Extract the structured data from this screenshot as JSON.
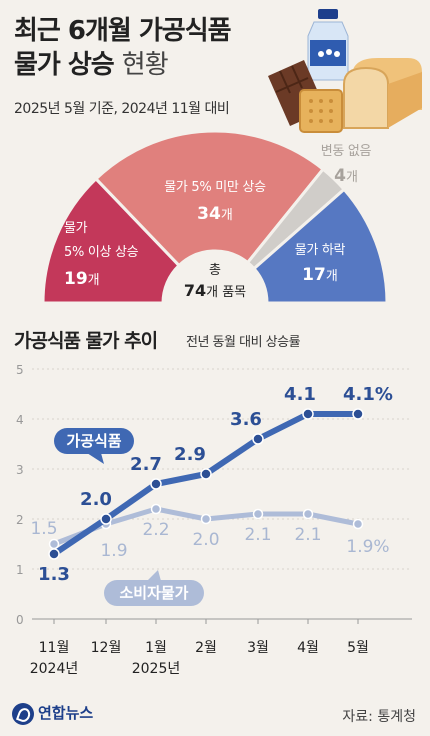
{
  "header": {
    "title_line1": "최근 6개월 가공식품",
    "title_line2_bold": "물가 상승",
    "title_line2_sub": "현황",
    "subtitle": "2025년 5월 기준, 2024년 11월 대비"
  },
  "gauge": {
    "center_label_line1": "총",
    "center_count": "74",
    "center_label_line2": "개 품목",
    "segments": [
      {
        "label_lines": [
          "물가",
          "5% 이상 상승"
        ],
        "count": "19",
        "unit": "개",
        "value": 19,
        "color": "#c3385a"
      },
      {
        "label_lines": [
          "물가 5% 미만 상승"
        ],
        "count": "34",
        "unit": "개",
        "value": 34,
        "color": "#e0807d"
      },
      {
        "label_lines": [
          "변동 없음"
        ],
        "count": "4",
        "unit": "개",
        "value": 4,
        "color": "#d0cdc9"
      },
      {
        "label_lines": [
          "물가 하락"
        ],
        "count": "17",
        "unit": "개",
        "value": 17,
        "color": "#5678c2"
      }
    ]
  },
  "chart_section": {
    "title": "가공식품 물가 추이",
    "subtitle": "전년 동월 대비 상승률"
  },
  "chart_data": {
    "type": "line",
    "x": [
      "11월",
      "12월",
      "1월",
      "2월",
      "3월",
      "4월",
      "5월"
    ],
    "x_year_labels": [
      {
        "index": 0,
        "text": "2024년"
      },
      {
        "index": 2,
        "text": "2025년"
      }
    ],
    "ylim": [
      0,
      5
    ],
    "yticks": [
      "0",
      "1",
      "2",
      "3",
      "4",
      "5"
    ],
    "grid": true,
    "series": [
      {
        "name": "가공식품",
        "values": [
          1.3,
          2.0,
          2.7,
          2.9,
          3.6,
          4.1,
          4.1
        ],
        "labels": [
          "1.3",
          "2.0",
          "2.7",
          "2.9",
          "3.6",
          "4.1",
          "4.1%"
        ],
        "color": "#3f68b3"
      },
      {
        "name": "소비자물가",
        "values": [
          1.5,
          1.9,
          2.2,
          2.0,
          2.1,
          2.1,
          1.9
        ],
        "labels": [
          "1.5",
          "1.9",
          "2.2",
          "2.0",
          "2.1",
          "2.1",
          "1.9%"
        ],
        "color": "#aebcd8"
      }
    ]
  },
  "footer": {
    "logo": "연합뉴스",
    "source": "자료: 통계청"
  }
}
